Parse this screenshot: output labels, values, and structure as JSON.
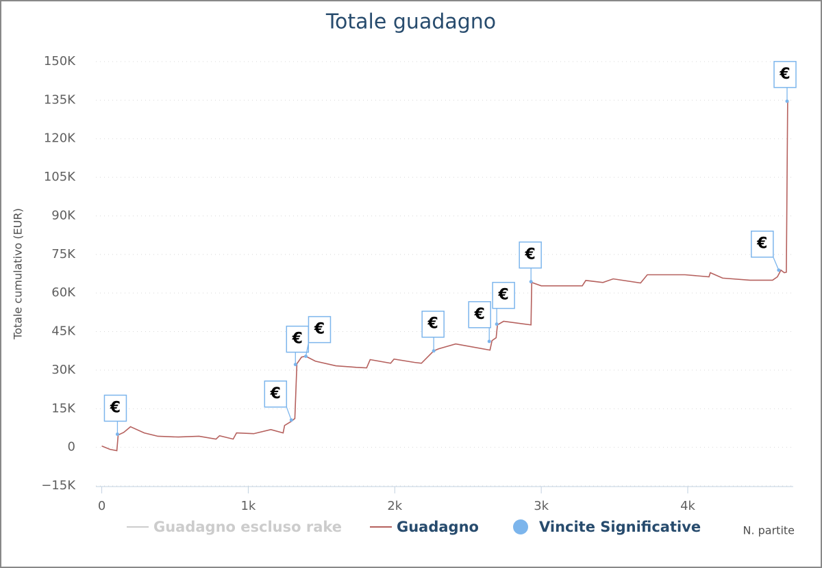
{
  "chart_data": {
    "type": "line",
    "title": "Totale guadagno",
    "x_label": "N. partite",
    "y_label": "Totale cumulativo (EUR)",
    "flag_label": "€",
    "xlim": [
      -40,
      4720
    ],
    "ylim": [
      -15000,
      150000
    ],
    "xticks": [
      0,
      {
        "value": 1000,
        "label": "1k"
      },
      {
        "value": 2000,
        "label": "2k"
      },
      {
        "value": 3000,
        "label": "3k"
      },
      {
        "value": 4000,
        "label": "4k"
      }
    ],
    "yticks": [
      {
        "value": -15000,
        "label": "−15K"
      },
      0,
      {
        "value": 15000,
        "label": "15K"
      },
      {
        "value": 30000,
        "label": "30K"
      },
      {
        "value": 45000,
        "label": "45K"
      },
      {
        "value": 60000,
        "label": "60K"
      },
      {
        "value": 75000,
        "label": "75K"
      },
      {
        "value": 90000,
        "label": "90K"
      },
      {
        "value": 105000,
        "label": "105K"
      },
      {
        "value": 120000,
        "label": "120K"
      },
      {
        "value": 135000,
        "label": "135K"
      },
      {
        "value": 150000,
        "label": "150K"
      }
    ],
    "grid": true,
    "series": [
      {
        "name": "Guadagno escluso rake",
        "color": "#cccccc",
        "visible": false
      },
      {
        "name": "Guadagno",
        "color": "#b5605d",
        "kind": "line",
        "x": [
          0,
          56,
          103,
          112,
          150,
          173,
          196,
          290,
          383,
          523,
          664,
          780,
          804,
          897,
          920,
          1037,
          1154,
          1238,
          1248,
          1294,
          1318,
          1332,
          1364,
          1393,
          1458,
          1598,
          1738,
          1808,
          1832,
          1972,
          1995,
          2136,
          2182,
          2266,
          2299,
          2416,
          2650,
          2664,
          2692,
          2701,
          2743,
          2930,
          2935,
          3000,
          3280,
          3304,
          3421,
          3491,
          3678,
          3724,
          3981,
          4145,
          4154,
          4238,
          4425,
          4579,
          4612,
          4636,
          4659,
          4673,
          4682,
          4687
        ],
        "values": [
          500,
          -800,
          -1300,
          4800,
          5800,
          6900,
          8000,
          5600,
          4300,
          4000,
          4300,
          3200,
          4500,
          3200,
          5600,
          5300,
          6900,
          5600,
          8500,
          10100,
          11200,
          32500,
          35100,
          35400,
          33500,
          31700,
          31100,
          30900,
          34100,
          32700,
          34300,
          33000,
          32700,
          37500,
          38300,
          40200,
          37800,
          41500,
          42600,
          47600,
          49000,
          47600,
          64100,
          62800,
          62800,
          64900,
          64100,
          65500,
          63900,
          67100,
          67100,
          66300,
          67900,
          65800,
          65000,
          65000,
          66300,
          68900,
          67900,
          68100,
          134600,
          134100
        ]
      },
      {
        "name": "Vincite Significative",
        "color": "#7cb5ec",
        "kind": "scatter",
        "x": [
          107,
          1294,
          1322,
          1393,
          2266,
          2645,
          2696,
          2930,
          4621,
          4678
        ],
        "values": [
          5100,
          10600,
          32200,
          35400,
          37500,
          41200,
          47900,
          64400,
          68900,
          134600
        ]
      }
    ]
  }
}
